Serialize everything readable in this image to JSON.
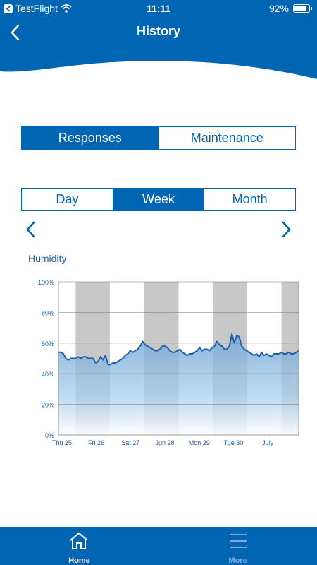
{
  "status_bar": {
    "app": "TestFlight",
    "time": "11:11",
    "battery_percent": "92%",
    "battery_level": 0.92
  },
  "nav": {
    "title": "History"
  },
  "tabs_top": [
    {
      "label": "Responses",
      "active": true
    },
    {
      "label": "Maintenance",
      "active": false
    }
  ],
  "tabs_period": [
    {
      "label": "Day",
      "active": false
    },
    {
      "label": "Week",
      "active": true
    },
    {
      "label": "Month",
      "active": false
    }
  ],
  "chart_title": "Humidity",
  "chart_data": {
    "type": "area",
    "title": "Humidity",
    "xlabel": "",
    "ylabel": "",
    "ylim": [
      0,
      100
    ],
    "y_ticks": [
      "0%",
      "20%",
      "40%",
      "60%",
      "80%",
      "100%"
    ],
    "x_ticks": [
      "Thu 25",
      "Fri 26",
      "Sat 27",
      "Jun 28",
      "Mon 29",
      "Tue 30",
      "July"
    ],
    "grid": true,
    "line_color": "#1f5fa8",
    "fill_color": "#9ec5e6",
    "night_band_color": "#c8c8c8",
    "series": [
      {
        "values": [
          54,
          54,
          53,
          50,
          49,
          50,
          50,
          50,
          51,
          50,
          51,
          51,
          50,
          50,
          50,
          47,
          48,
          51,
          49,
          52,
          46,
          46,
          47,
          47,
          48,
          49,
          50,
          52,
          53,
          55,
          54,
          55,
          56,
          58,
          61,
          59,
          58,
          57,
          56,
          55,
          55,
          56,
          58,
          58,
          57,
          55,
          54,
          54,
          55,
          56,
          54,
          53,
          52,
          53,
          53,
          54,
          55,
          57,
          55,
          56,
          56,
          55,
          57,
          58,
          61,
          59,
          58,
          56,
          56,
          58,
          66,
          60,
          65,
          64,
          58,
          56,
          55,
          54,
          53,
          52,
          53,
          51,
          54,
          52,
          53,
          52,
          51,
          53,
          53,
          53,
          54,
          53,
          53,
          54,
          53,
          53,
          54,
          55
        ]
      }
    ]
  },
  "tab_bar": {
    "items": [
      {
        "label": "Home",
        "icon": "home-icon",
        "active": true
      },
      {
        "label": "More",
        "icon": "menu-icon",
        "active": false
      }
    ]
  },
  "colors": {
    "brand": "#0066b3",
    "inactive_tab": "#7fa9d4"
  }
}
